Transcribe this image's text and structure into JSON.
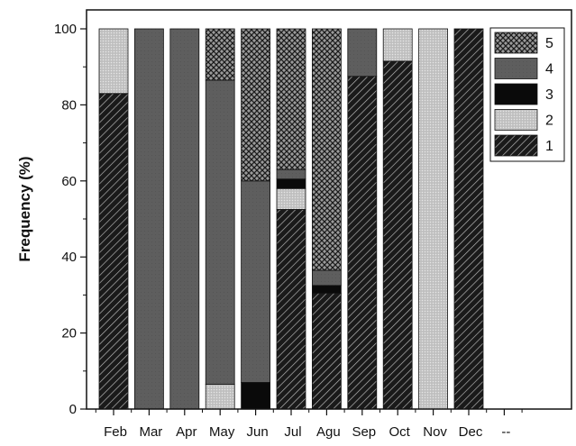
{
  "chart_data": {
    "type": "bar",
    "stacked": true,
    "percent": true,
    "title": "",
    "xlabel": "",
    "ylabel": "Frequency (%)",
    "ylim": [
      0,
      100
    ],
    "yticks": [
      "0",
      "20",
      "40",
      "60",
      "80",
      "100"
    ],
    "categories": [
      "Feb",
      "Mar",
      "Apr",
      "May",
      "Jun",
      "Jul",
      "Agu",
      "Sep",
      "Oct",
      "Nov",
      "Dec",
      "--"
    ],
    "series": [
      {
        "name": "1",
        "pattern": "diagonal-hatch",
        "color": "#1a1a1a",
        "values": [
          83,
          0,
          0,
          0,
          0,
          52.5,
          30.5,
          87.5,
          91.5,
          0,
          100,
          0
        ]
      },
      {
        "name": "2",
        "pattern": "light-gray-dots",
        "color": "#c8c8c8",
        "values": [
          17,
          0,
          0,
          6.5,
          0,
          5.5,
          0,
          0,
          8.5,
          100,
          0,
          0
        ]
      },
      {
        "name": "3",
        "pattern": "solid",
        "color": "#0a0a0a",
        "values": [
          0,
          0,
          0,
          0,
          7,
          2.5,
          2,
          0,
          0,
          0,
          0,
          0
        ]
      },
      {
        "name": "4",
        "pattern": "solid",
        "color": "#5e5e5e",
        "values": [
          0,
          100,
          100,
          80,
          53,
          2.5,
          4,
          12.5,
          0,
          0,
          0,
          0
        ]
      },
      {
        "name": "5",
        "pattern": "crosshatch",
        "color": "#2a2a2a",
        "values": [
          0,
          0,
          0,
          13.5,
          40,
          37,
          63.5,
          0,
          0,
          0,
          0,
          0
        ]
      }
    ],
    "legend": {
      "position": "top-right",
      "order": [
        "5",
        "4",
        "3",
        "2",
        "1"
      ]
    },
    "grid": false
  }
}
